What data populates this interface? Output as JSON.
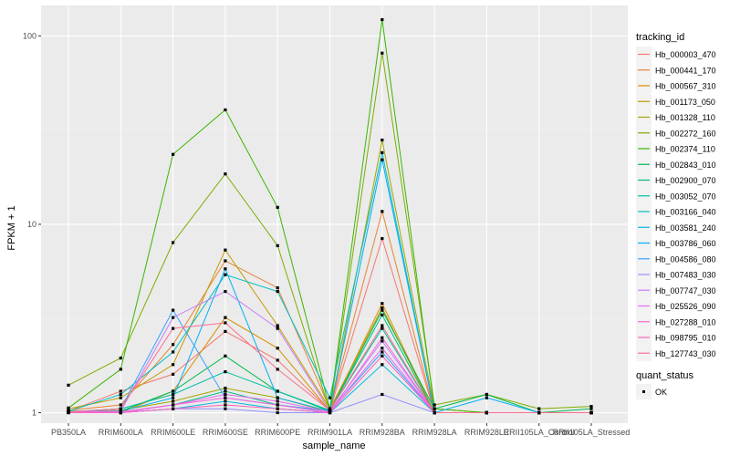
{
  "chart_data": {
    "type": "line",
    "xlabel": "sample_name",
    "ylabel": "FPKM + 1",
    "y_scale": "log10",
    "ylim": [
      0.88,
      145
    ],
    "y_ticks": [
      1,
      10,
      100
    ],
    "y_tick_labels": [
      "1",
      "10",
      "100"
    ],
    "grid": true,
    "legend_placement": "right",
    "categories": [
      "PB350LA",
      "RRIM600LA",
      "RRIM600LE",
      "RRIM600SE",
      "RRIM600PE",
      "RRIM901LA",
      "RRIM928BA",
      "RRIM928LA",
      "RRIM928LE",
      "RRII105LA_Control",
      "RRII105LA_Stressed"
    ],
    "series": [
      {
        "name": "Hb_000003_470",
        "color": "#F8766D",
        "values": [
          1.02,
          1.3,
          1.6,
          2.7,
          1.9,
          1.03,
          8.4,
          1.0,
          1.0,
          1.0,
          1.0
        ]
      },
      {
        "name": "Hb_000441_170",
        "color": "#EA8331",
        "values": [
          1.03,
          1.1,
          2.3,
          6.4,
          4.6,
          1.05,
          11.7,
          1.0,
          1.0,
          1.0,
          1.0
        ]
      },
      {
        "name": "Hb_000567_310",
        "color": "#D89000",
        "values": [
          1.01,
          1.0,
          1.3,
          3.2,
          2.2,
          1.02,
          3.8,
          1.0,
          1.0,
          1.0,
          1.0
        ]
      },
      {
        "name": "Hb_001173_050",
        "color": "#C09B00",
        "values": [
          1.05,
          1.2,
          1.8,
          7.3,
          2.9,
          1.05,
          3.6,
          1.0,
          1.0,
          1.0,
          1.0
        ]
      },
      {
        "name": "Hb_001328_110",
        "color": "#A3A500",
        "values": [
          1.01,
          1.03,
          1.15,
          1.35,
          1.2,
          1.01,
          28.0,
          1.05,
          1.0,
          1.0,
          1.0
        ]
      },
      {
        "name": "Hb_002272_160",
        "color": "#7CAE00",
        "values": [
          1.4,
          1.95,
          8.0,
          18.5,
          7.7,
          1.02,
          81.0,
          1.1,
          1.25,
          1.05,
          1.08
        ]
      },
      {
        "name": "Hb_002374_110",
        "color": "#39B600",
        "values": [
          1.06,
          1.7,
          23.5,
          40.5,
          12.3,
          1.05,
          122.0,
          1.05,
          1.0,
          1.0,
          1.0
        ]
      },
      {
        "name": "Hb_002843_010",
        "color": "#00BB4E",
        "values": [
          1.02,
          1.02,
          1.3,
          2.0,
          1.3,
          1.02,
          3.5,
          1.05,
          1.25,
          1.0,
          1.05
        ]
      },
      {
        "name": "Hb_002900_070",
        "color": "#00BF7D",
        "values": [
          1.01,
          1.01,
          1.1,
          1.3,
          1.1,
          1.02,
          3.3,
          1.0,
          1.0,
          1.0,
          1.0
        ]
      },
      {
        "name": "Hb_003052_070",
        "color": "#00C1A3",
        "values": [
          1.01,
          1.05,
          1.25,
          1.65,
          1.3,
          1.03,
          2.8,
          1.0,
          1.0,
          1.0,
          1.0
        ]
      },
      {
        "name": "Hb_003166_040",
        "color": "#00BFC4",
        "values": [
          1.02,
          1.25,
          2.1,
          5.4,
          4.4,
          1.2,
          24.0,
          1.0,
          1.0,
          1.0,
          1.0
        ]
      },
      {
        "name": "Hb_003581_240",
        "color": "#00BAE0",
        "values": [
          1.0,
          1.0,
          1.05,
          1.15,
          1.05,
          1.0,
          1.8,
          1.0,
          1.0,
          1.0,
          1.0
        ]
      },
      {
        "name": "Hb_003786_060",
        "color": "#00B0F6",
        "values": [
          1.01,
          1.02,
          1.2,
          5.8,
          1.2,
          1.02,
          22.0,
          1.0,
          1.2,
          1.0,
          1.0
        ]
      },
      {
        "name": "Hb_004586_080",
        "color": "#35A2FF",
        "values": [
          1.01,
          1.05,
          3.5,
          1.2,
          1.1,
          1.02,
          2.1,
          1.0,
          1.0,
          1.0,
          1.0
        ]
      },
      {
        "name": "Hb_007483_030",
        "color": "#9590FF",
        "values": [
          1.0,
          1.0,
          1.05,
          1.05,
          1.0,
          1.0,
          1.25,
          1.0,
          1.0,
          1.0,
          1.0
        ]
      },
      {
        "name": "Hb_007747_030",
        "color": "#C77CFF",
        "values": [
          1.01,
          1.02,
          3.2,
          4.4,
          2.8,
          1.02,
          2.4,
          1.0,
          1.0,
          1.0,
          1.0
        ]
      },
      {
        "name": "Hb_025526_090",
        "color": "#E76BF3",
        "values": [
          1.01,
          1.01,
          1.1,
          1.25,
          1.15,
          1.01,
          2.2,
          1.0,
          1.0,
          1.0,
          1.0
        ]
      },
      {
        "name": "Hb_027288_010",
        "color": "#FA62DB",
        "values": [
          1.01,
          1.0,
          1.1,
          1.2,
          1.1,
          1.0,
          2.5,
          1.0,
          1.0,
          1.0,
          1.0
        ]
      },
      {
        "name": "Hb_098795_010",
        "color": "#FF62BC",
        "values": [
          1.0,
          1.0,
          1.05,
          1.1,
          1.05,
          1.0,
          2.0,
          1.0,
          1.0,
          1.0,
          1.0
        ]
      },
      {
        "name": "Hb_127743_030",
        "color": "#FF6C91",
        "values": [
          1.01,
          1.05,
          2.8,
          3.0,
          1.7,
          1.03,
          2.9,
          1.0,
          1.0,
          1.0,
          1.0
        ]
      }
    ],
    "legend_title": "tracking_id",
    "legend2": {
      "title": "quant_status",
      "items": [
        "OK"
      ]
    }
  }
}
